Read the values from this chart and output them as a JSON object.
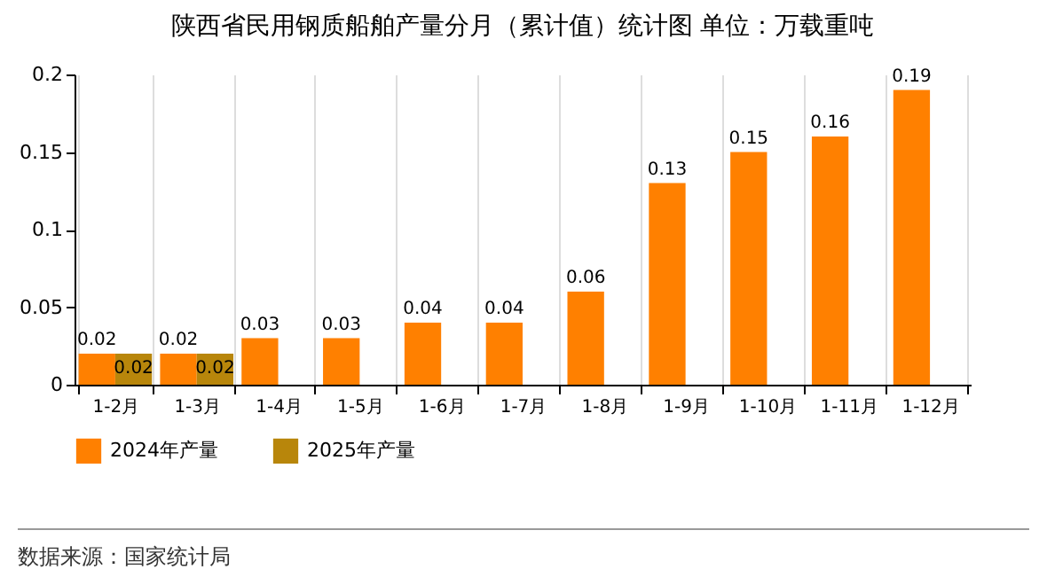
{
  "chart_data": {
    "type": "bar",
    "title": "陕西省民用钢质船舶产量分月（累计值）统计图 单位：万载重吨",
    "categories": [
      "1-2月",
      "1-3月",
      "1-4月",
      "1-5月",
      "1-6月",
      "1-7月",
      "1-8月",
      "1-9月",
      "1-10月",
      "1-11月",
      "1-12月"
    ],
    "series": [
      {
        "name": "2024年产量",
        "color": "#ff8000",
        "values": [
          0.02,
          0.02,
          0.03,
          0.03,
          0.04,
          0.04,
          0.06,
          0.13,
          0.15,
          0.16,
          0.19
        ]
      },
      {
        "name": "2025年产量",
        "color": "#b8860b",
        "values": [
          0.02,
          0.02,
          null,
          null,
          null,
          null,
          null,
          null,
          null,
          null,
          null
        ]
      }
    ],
    "ylim": [
      0,
      0.2
    ],
    "yticks": [
      0,
      0.05,
      0.1,
      0.15,
      0.2
    ],
    "grid": "x",
    "legend": "bottom",
    "data_labels": true,
    "annotations": [
      "数据来源：国家统计局"
    ]
  }
}
